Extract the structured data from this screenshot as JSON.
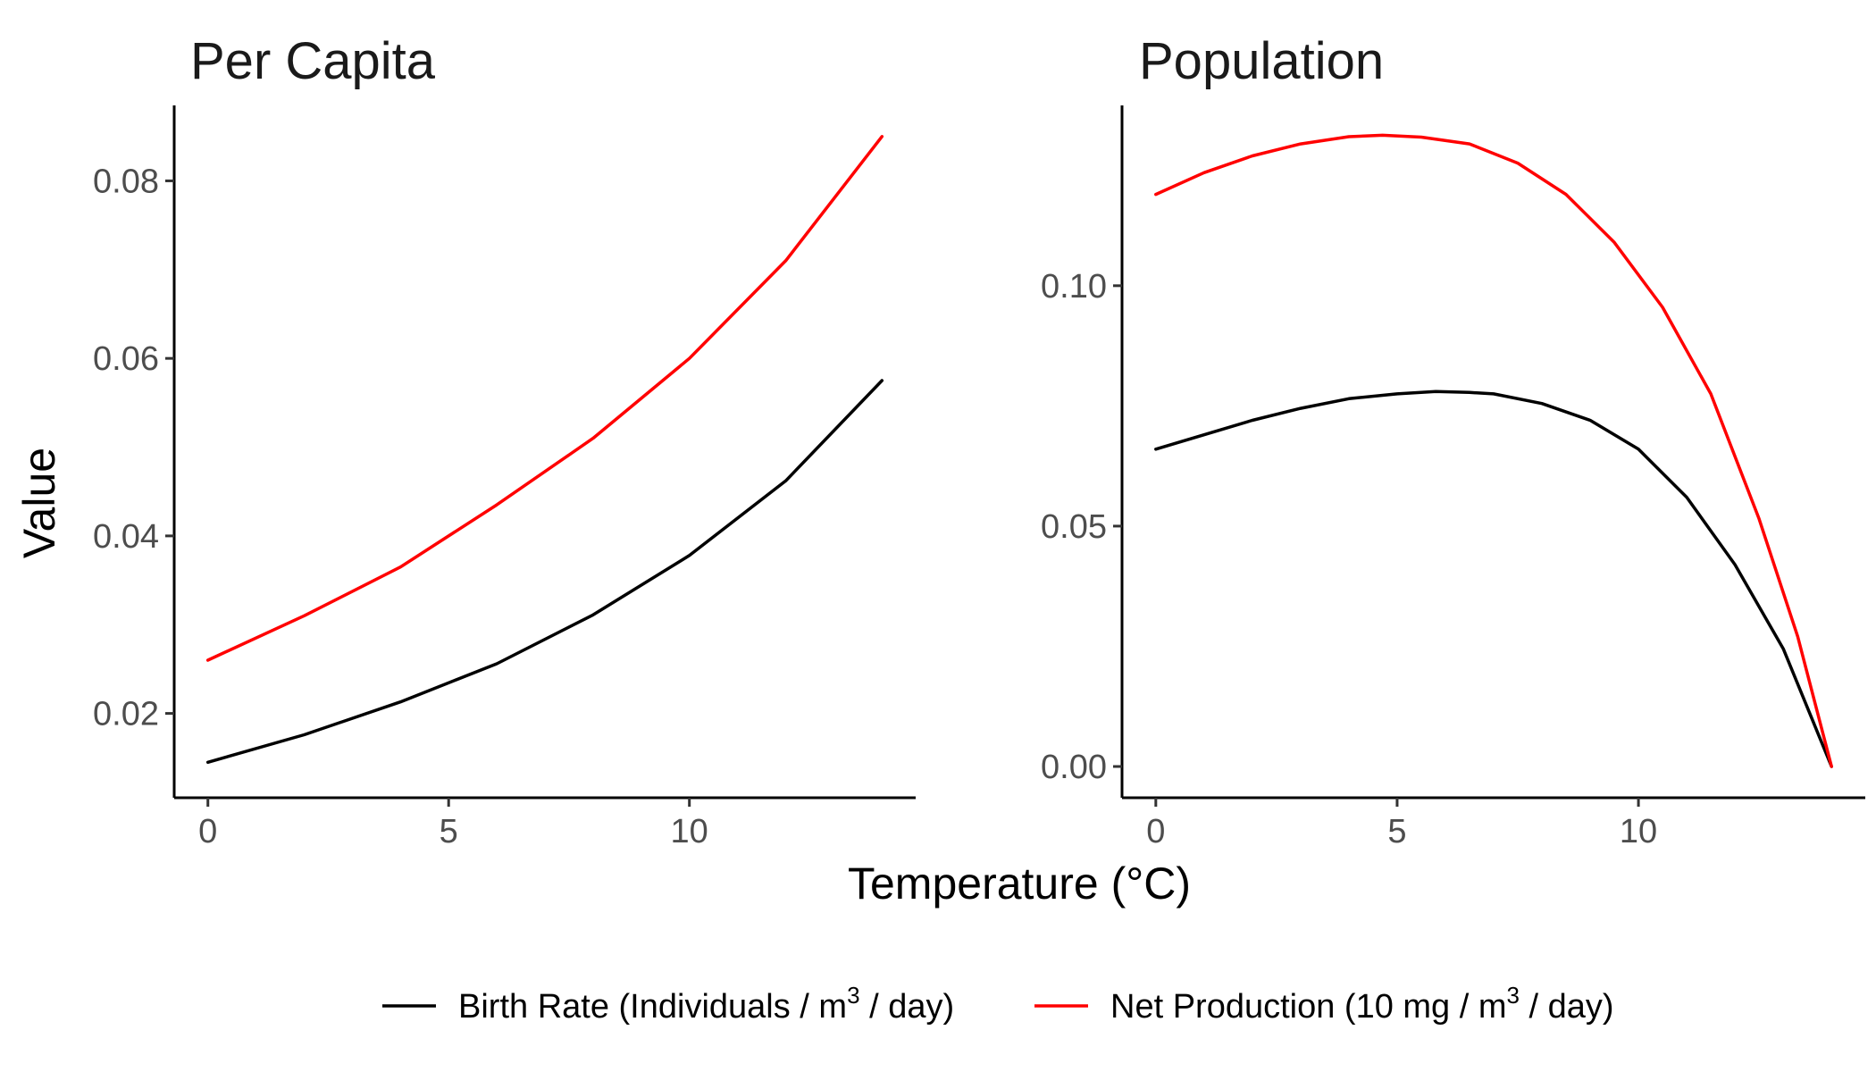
{
  "chart_data": {
    "type": "line",
    "xlabel": "Temperature (°C)",
    "ylabel": "Value",
    "legend": {
      "position": "bottom",
      "entries": [
        {
          "name": "Birth Rate (Individuals / m³ / day)",
          "pre": "Birth Rate (Individuals / m",
          "sup": "3",
          "post": " / day)",
          "color": "#000000"
        },
        {
          "name": "Net Production (10 mg / m³ / day)",
          "pre": "Net Production (10 mg / m",
          "sup": "3",
          "post": " / day)",
          "color": "#ff0000"
        }
      ]
    },
    "grid": false,
    "panels": [
      {
        "title": "Per Capita",
        "xlim": [
          -0.7,
          14.7
        ],
        "ylim": [
          0.0105,
          0.0885
        ],
        "xticks": [
          0,
          5,
          10
        ],
        "yticks": [
          0.02,
          0.04,
          0.06,
          0.08
        ],
        "ytick_labels": [
          "0.02",
          "0.04",
          "0.06",
          "0.08"
        ],
        "series": [
          {
            "name": "Birth Rate (Individuals / m³ / day)",
            "color": "#000000",
            "x": [
              0,
              2,
              4,
              6,
              8,
              10,
              12,
              14
            ],
            "y": [
              0.0145,
              0.0176,
              0.0213,
              0.0256,
              0.0311,
              0.0378,
              0.0462,
              0.0575
            ]
          },
          {
            "name": "Net Production (10 mg / m³ / day)",
            "color": "#ff0000",
            "x": [
              0,
              2,
              4,
              6,
              8,
              10,
              12,
              14
            ],
            "y": [
              0.026,
              0.031,
              0.0365,
              0.0435,
              0.051,
              0.06,
              0.071,
              0.085
            ]
          }
        ]
      },
      {
        "title": "Population",
        "xlim": [
          -0.7,
          14.7
        ],
        "ylim": [
          -0.0065,
          0.1375
        ],
        "xticks": [
          0,
          5,
          10
        ],
        "yticks": [
          0.0,
          0.05,
          0.1
        ],
        "ytick_labels": [
          "0.00",
          "0.05",
          "0.10"
        ],
        "series": [
          {
            "name": "Birth Rate (Individuals / m³ / day)",
            "color": "#000000",
            "x": [
              0,
              1,
              2,
              3,
              4,
              5,
              5.8,
              6.5,
              7,
              8,
              9,
              10,
              11,
              12,
              13,
              14
            ],
            "y": [
              0.066,
              0.069,
              0.072,
              0.0745,
              0.0765,
              0.0775,
              0.078,
              0.0778,
              0.0775,
              0.0755,
              0.072,
              0.066,
              0.056,
              0.042,
              0.0245,
              0.0
            ]
          },
          {
            "name": "Net Production (10 mg / m³ / day)",
            "color": "#ff0000",
            "x": [
              0,
              1,
              2,
              3,
              4,
              4.7,
              5.5,
              6.5,
              7.5,
              8.5,
              9.5,
              10.5,
              11.5,
              12.5,
              13.3,
              14
            ],
            "y": [
              0.119,
              0.1235,
              0.127,
              0.1295,
              0.131,
              0.1313,
              0.1309,
              0.1295,
              0.1255,
              0.119,
              0.109,
              0.0955,
              0.0775,
              0.0515,
              0.027,
              0.0
            ]
          }
        ]
      }
    ]
  }
}
